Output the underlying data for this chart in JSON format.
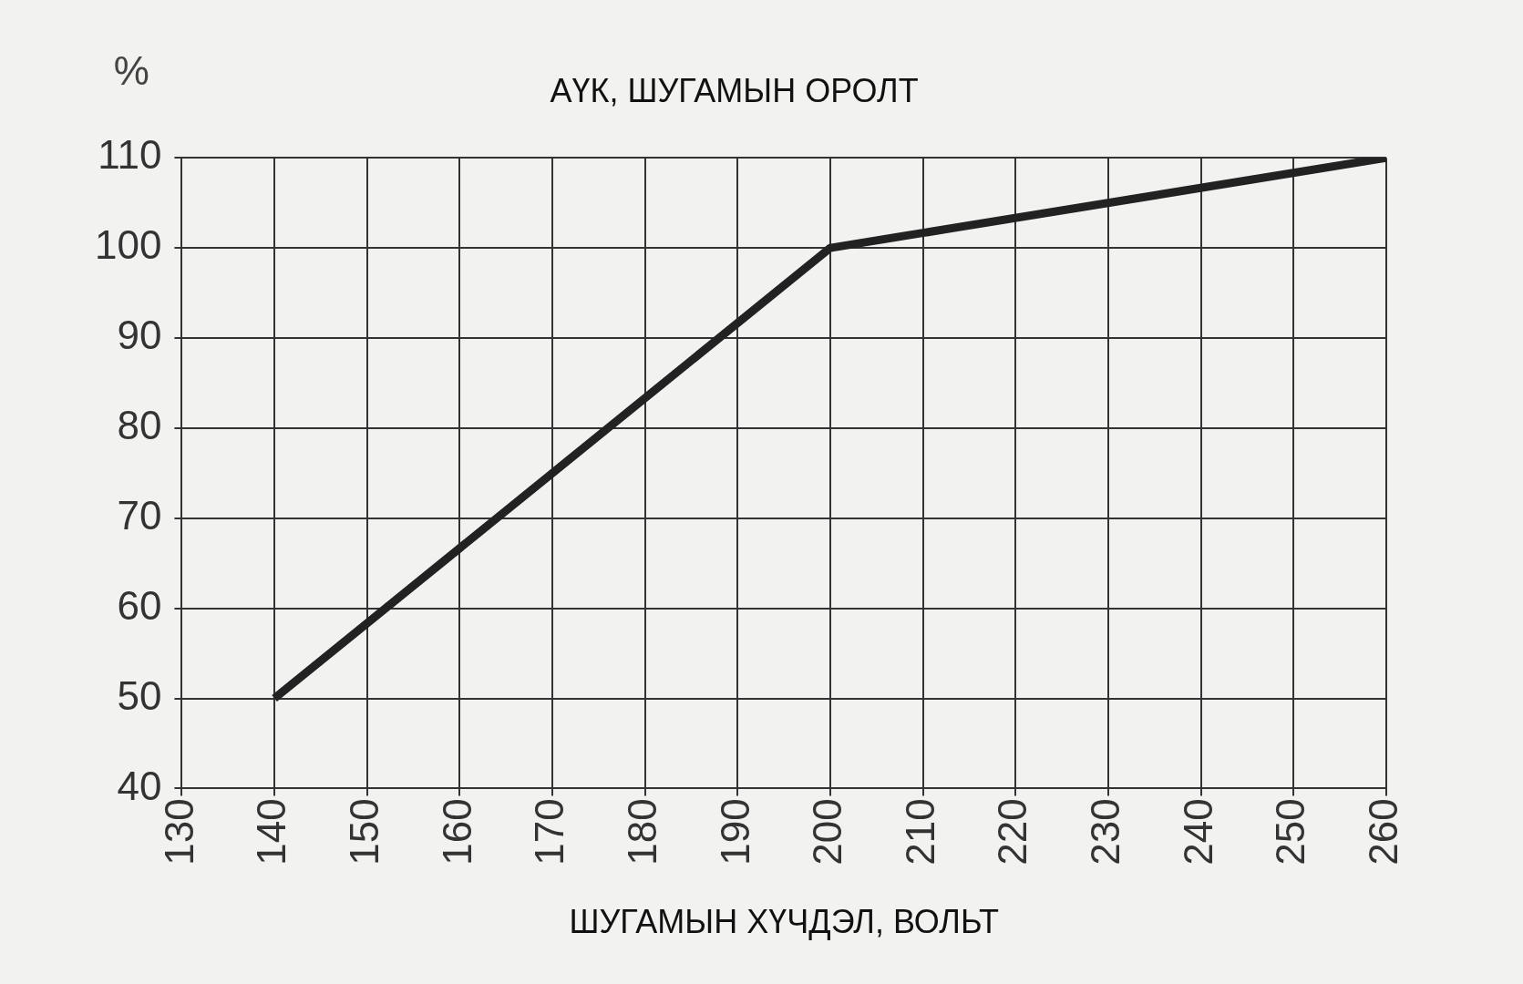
{
  "chart_data": {
    "type": "line",
    "title": "АҮК, ШУГАМЫН ОРОЛТ",
    "xlabel": "ШУГАМЫН ХҮЧДЭЛ, ВОЛЬТ",
    "ylabel": "%",
    "x": [
      140,
      200,
      260
    ],
    "series": [
      {
        "color": "#222222",
        "values": [
          50,
          100,
          110
        ]
      }
    ],
    "xlim": [
      130,
      260
    ],
    "xticks": [
      130,
      140,
      150,
      160,
      170,
      180,
      190,
      200,
      210,
      220,
      230,
      240,
      250,
      260
    ],
    "ylim": [
      40,
      110
    ],
    "yticks": [
      40,
      50,
      60,
      70,
      80,
      90,
      100,
      110
    ],
    "grid": true,
    "legend": false,
    "marker": "none",
    "line_style": "solid"
  }
}
